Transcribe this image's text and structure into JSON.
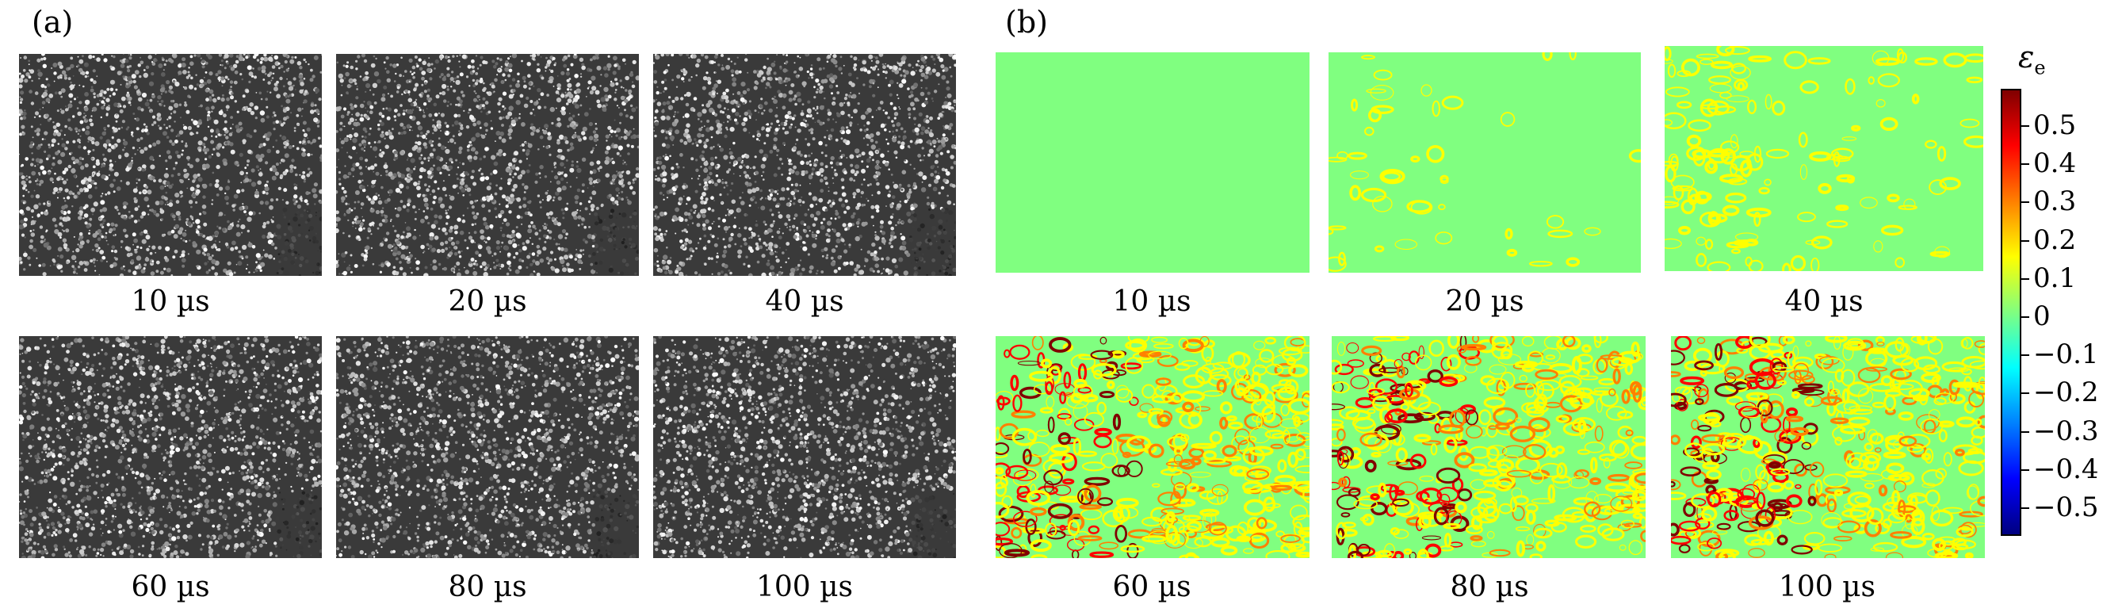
{
  "panel_a": {
    "label": "(a)",
    "frames": [
      {
        "caption": "10 µs"
      },
      {
        "caption": "20 µs"
      },
      {
        "caption": "40 µs"
      },
      {
        "caption": "60 µs"
      },
      {
        "caption": "80 µs"
      },
      {
        "caption": "100 µs"
      }
    ]
  },
  "panel_b": {
    "label": "(b)",
    "frames": [
      {
        "caption": "10 µs"
      },
      {
        "caption": "20 µs"
      },
      {
        "caption": "40 µs"
      },
      {
        "caption": "60 µs"
      },
      {
        "caption": "80 µs"
      },
      {
        "caption": "100 µs"
      }
    ],
    "colorbar": {
      "symbol": "ε",
      "subscript": "e",
      "ticks": [
        "0.5",
        "0.4",
        "0.3",
        "0.2",
        "0.1",
        "0",
        "−0.1",
        "−0.2",
        "−0.3",
        "−0.4",
        "−0.5"
      ],
      "colors": [
        "#800000",
        "#ff0000",
        "#ff8000",
        "#ffff00",
        "#80ff80",
        "#00ffff",
        "#0080ff",
        "#0000ff",
        "#000080"
      ]
    }
  }
}
